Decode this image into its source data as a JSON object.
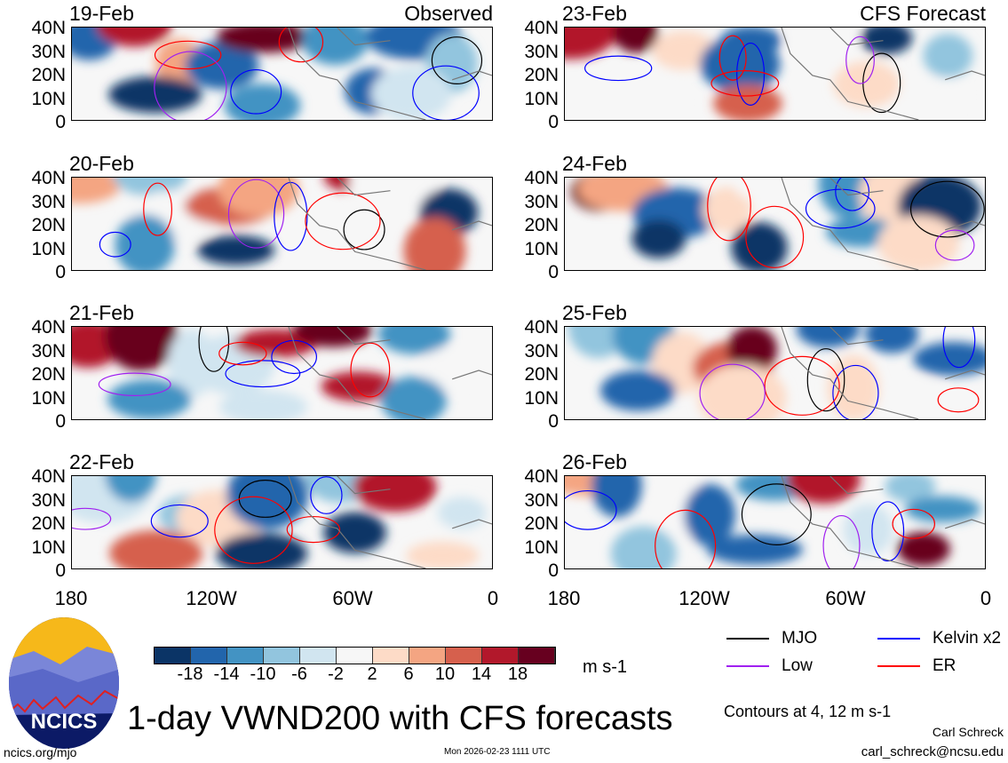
{
  "panels": {
    "observed_label": "Observed",
    "forecast_label": "CFS Forecast",
    "left_dates": [
      "19-Feb",
      "20-Feb",
      "21-Feb",
      "22-Feb"
    ],
    "right_dates": [
      "23-Feb",
      "24-Feb",
      "25-Feb",
      "26-Feb"
    ],
    "y_ticks": [
      "40N",
      "30N",
      "20N",
      "10N",
      "0"
    ],
    "x_ticks": [
      "180",
      "120W",
      "60W",
      "0"
    ]
  },
  "colorbar": {
    "labels": [
      "-18",
      "-14",
      "-10",
      "-6",
      "-2",
      "2",
      "6",
      "10",
      "14",
      "18"
    ],
    "colors": [
      "#0b3466",
      "#2265ac",
      "#4393c3",
      "#92c5de",
      "#d1e5f0",
      "#f7f7f7",
      "#fddbc7",
      "#f4a582",
      "#d6604d",
      "#b2182b",
      "#67001f"
    ],
    "units": "m s-1"
  },
  "legend": [
    {
      "label": "MJO",
      "color": "#000000"
    },
    {
      "label": "Kelvin x2",
      "color": "#0000ff"
    },
    {
      "label": "Low",
      "color": "#a020f0"
    },
    {
      "label": "ER",
      "color": "#ff0000"
    }
  ],
  "contours_note": "Contours at 4, 12 m s-1",
  "title": "1-day VWND200 with CFS forecasts",
  "logo_text": "NCICS",
  "footer": {
    "url": "ncics.org/mjo",
    "timestamp": "Mon 2026-02-23 1111 UTC",
    "author": "Carl Schreck",
    "email": "carl_schreck@ncsu.edu"
  }
}
